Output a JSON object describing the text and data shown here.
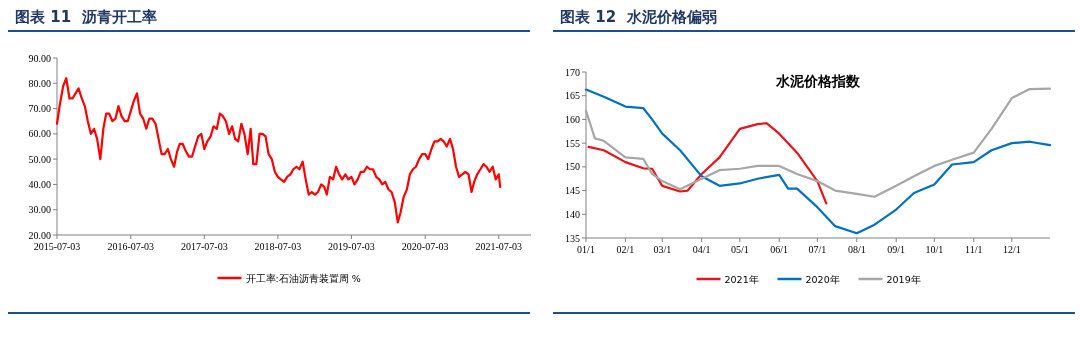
{
  "chart_data": [
    {
      "type": "line",
      "title": "图表 11  沥青开工率",
      "xlim": [
        "2015-07-03",
        "2021-12-10"
      ],
      "ylim": [
        20,
        90
      ],
      "xticks": [
        "2015-07-03",
        "2016-07-03",
        "2017-07-03",
        "2018-07-03",
        "2019-07-03",
        "2020-07-03",
        "2021-07-03"
      ],
      "yticks": [
        {
          "value": 20,
          "label": "20.00"
        },
        {
          "value": 30,
          "label": "30.00"
        },
        {
          "value": 40,
          "label": "40.00"
        },
        {
          "value": 50,
          "label": "50.00"
        },
        {
          "value": 60,
          "label": "60.00"
        },
        {
          "value": 70,
          "label": "70.00"
        },
        {
          "value": 80,
          "label": "80.00"
        },
        {
          "value": 90,
          "label": "90.00"
        }
      ],
      "grid": false,
      "legend": "bottom",
      "marker": "none",
      "line_style": "solid",
      "x": [
        "2015-07-03",
        "2015-07-18",
        "2015-08-03",
        "2015-08-18",
        "2015-09-03",
        "2015-09-18",
        "2015-10-03",
        "2015-10-18",
        "2015-11-03",
        "2015-11-18",
        "2015-12-03",
        "2015-12-18",
        "2016-01-03",
        "2016-01-18",
        "2016-02-03",
        "2016-02-18",
        "2016-03-03",
        "2016-03-18",
        "2016-04-03",
        "2016-04-18",
        "2016-05-03",
        "2016-05-18",
        "2016-06-03",
        "2016-06-18",
        "2016-07-03",
        "2016-07-18",
        "2016-08-03",
        "2016-08-18",
        "2016-09-03",
        "2016-09-18",
        "2016-10-03",
        "2016-10-18",
        "2016-11-03",
        "2016-11-18",
        "2016-12-03",
        "2016-12-18",
        "2017-01-03",
        "2017-01-18",
        "2017-02-03",
        "2017-02-18",
        "2017-03-03",
        "2017-03-18",
        "2017-04-03",
        "2017-04-18",
        "2017-05-03",
        "2017-05-18",
        "2017-06-03",
        "2017-06-18",
        "2017-07-03",
        "2017-07-18",
        "2017-08-03",
        "2017-08-18",
        "2017-09-03",
        "2017-09-18",
        "2017-10-03",
        "2017-10-18",
        "2017-11-03",
        "2017-11-18",
        "2017-12-03",
        "2017-12-18",
        "2018-01-03",
        "2018-01-18",
        "2018-02-03",
        "2018-02-18",
        "2018-03-03",
        "2018-03-18",
        "2018-04-03",
        "2018-04-18",
        "2018-05-03",
        "2018-05-18",
        "2018-06-03",
        "2018-06-18",
        "2018-07-03",
        "2018-07-18",
        "2018-08-03",
        "2018-08-18",
        "2018-09-03",
        "2018-09-18",
        "2018-10-03",
        "2018-10-18",
        "2018-11-03",
        "2018-11-18",
        "2018-12-03",
        "2018-12-18",
        "2019-01-03",
        "2019-01-18",
        "2019-02-03",
        "2019-02-18",
        "2019-03-03",
        "2019-03-18",
        "2019-04-03",
        "2019-04-18",
        "2019-05-03",
        "2019-05-18",
        "2019-06-03",
        "2019-06-18",
        "2019-07-03",
        "2019-07-18",
        "2019-08-03",
        "2019-08-18",
        "2019-09-03",
        "2019-09-18",
        "2019-10-03",
        "2019-10-18",
        "2019-11-03",
        "2019-11-18",
        "2019-12-03",
        "2019-12-18",
        "2020-01-03",
        "2020-01-18",
        "2020-02-03",
        "2020-02-18",
        "2020-03-03",
        "2020-03-18",
        "2020-04-03",
        "2020-04-18",
        "2020-05-03",
        "2020-05-18",
        "2020-06-03",
        "2020-06-18",
        "2020-07-03",
        "2020-07-18",
        "2020-08-03",
        "2020-08-18",
        "2020-09-03",
        "2020-09-18",
        "2020-10-03",
        "2020-10-18",
        "2020-11-03",
        "2020-11-18",
        "2020-12-03",
        "2020-12-18",
        "2021-01-03",
        "2021-01-18",
        "2021-02-03",
        "2021-02-18",
        "2021-03-03",
        "2021-03-18",
        "2021-04-03",
        "2021-04-18",
        "2021-05-03",
        "2021-05-18",
        "2021-06-03",
        "2021-06-18",
        "2021-07-03",
        "2021-07-10"
      ],
      "series": [
        {
          "name": "开工率:石油沥青装置周 %",
          "color": "#ff0000",
          "values": [
            64,
            72,
            79,
            82,
            74,
            74,
            76,
            78,
            74,
            71,
            65,
            60,
            62,
            58,
            50,
            62,
            68,
            68,
            65,
            66,
            71,
            67,
            65,
            65,
            69,
            73,
            76,
            68,
            66,
            62,
            66,
            66,
            64,
            58,
            52,
            52,
            54,
            50,
            47,
            53,
            56,
            56,
            53,
            51,
            51,
            55,
            59,
            60,
            54,
            57,
            59,
            63,
            62,
            68,
            67,
            65,
            60,
            63,
            58,
            57,
            64,
            60,
            52,
            62,
            48,
            48,
            60,
            60,
            59,
            52,
            50,
            45,
            43,
            42,
            41,
            43,
            44,
            46,
            47,
            46,
            49,
            42,
            36,
            37,
            36,
            37,
            40,
            39,
            36,
            43,
            42,
            47,
            44,
            42,
            44,
            42,
            43,
            40,
            42,
            45,
            45,
            47,
            46,
            46,
            43,
            42,
            40,
            41,
            38,
            37,
            33,
            25,
            29,
            35,
            38,
            44,
            46,
            47,
            50,
            52,
            52,
            50,
            54,
            57,
            57,
            58,
            57,
            55,
            58,
            54,
            47,
            43,
            44,
            45,
            44,
            37,
            41,
            44,
            46,
            48,
            47,
            45,
            47,
            42,
            44,
            39
          ]
        }
      ]
    },
    {
      "type": "line",
      "title": "图表 12  水泥价格偏弱",
      "subtitle": "水泥价格指数",
      "xlim": [
        "--01-01",
        "--12-31"
      ],
      "ylim": [
        135,
        170
      ],
      "xticks": [
        {
          "value": "--01-01",
          "label": "01/1"
        },
        {
          "value": "--02-01",
          "label": "02/1"
        },
        {
          "value": "--03-01",
          "label": "03/1"
        },
        {
          "value": "--04-01",
          "label": "04/1"
        },
        {
          "value": "--05-01",
          "label": "05/1"
        },
        {
          "value": "--06-01",
          "label": "06/1"
        },
        {
          "value": "--07-01",
          "label": "07/1"
        },
        {
          "value": "--08-01",
          "label": "08/1"
        },
        {
          "value": "--09-01",
          "label": "09/1"
        },
        {
          "value": "--10-01",
          "label": "10/1"
        },
        {
          "value": "--11-01",
          "label": "11/1"
        },
        {
          "value": "--12-01",
          "label": "12/1"
        }
      ],
      "yticks": [
        135,
        140,
        145,
        150,
        155,
        160,
        165,
        170
      ],
      "grid": false,
      "legend": "bottom",
      "marker": "none",
      "line_style": "solid",
      "series": [
        {
          "name": "2021年",
          "color": "#e8141c",
          "x": [
            "--01-03",
            "--01-15",
            "--02-01",
            "--02-15",
            "--02-22",
            "--03-01",
            "--03-15",
            "--03-21",
            "--04-01",
            "--04-15",
            "--05-01",
            "--05-15",
            "--05-22",
            "--06-01",
            "--06-15",
            "--07-01",
            "--07-08"
          ],
          "values": [
            154.2,
            153.5,
            151,
            149.7,
            149.6,
            146,
            144.8,
            145,
            148.5,
            152,
            158,
            159,
            159.2,
            157,
            153,
            147,
            142.3
          ]
        },
        {
          "name": "2020年",
          "color": "#0070c0",
          "x": [
            "--01-01",
            "--01-15",
            "--02-01",
            "--02-15",
            "--02-22",
            "--03-01",
            "--03-15",
            "--04-01",
            "--04-15",
            "--05-01",
            "--05-15",
            "--06-01",
            "--06-08",
            "--06-15",
            "--07-01",
            "--07-15",
            "--08-01",
            "--08-15",
            "--09-01",
            "--09-15",
            "--10-01",
            "--10-15",
            "--11-01",
            "--11-15",
            "--12-01",
            "--12-15",
            "--12-31"
          ],
          "values": [
            166.3,
            164.8,
            162.7,
            162.4,
            160,
            157,
            153.5,
            148,
            146,
            146.5,
            147.5,
            148.3,
            145.4,
            145.4,
            141.5,
            137.5,
            136,
            137.8,
            141,
            144.5,
            146.3,
            150.5,
            151,
            153.5,
            155,
            155.3,
            154.6
          ]
        },
        {
          "name": "2019年",
          "color": "#a6a6a6",
          "x": [
            "--01-01",
            "--01-08",
            "--01-15",
            "--02-01",
            "--02-15",
            "--02-22",
            "--03-01",
            "--03-15",
            "--04-01",
            "--04-15",
            "--05-01",
            "--05-15",
            "--06-01",
            "--06-15",
            "--07-01",
            "--07-15",
            "--08-01",
            "--08-15",
            "--09-01",
            "--09-15",
            "--10-01",
            "--10-15",
            "--11-01",
            "--11-15",
            "--12-01",
            "--12-15",
            "--12-31"
          ],
          "values": [
            161.8,
            156,
            155.5,
            152,
            151.7,
            148.5,
            147,
            145.3,
            147.5,
            149.3,
            149.6,
            150.2,
            150.2,
            148.5,
            147,
            145,
            144.3,
            143.7,
            146,
            148,
            150.2,
            151.5,
            153,
            158,
            164.5,
            166.4,
            166.5
          ]
        }
      ]
    }
  ]
}
